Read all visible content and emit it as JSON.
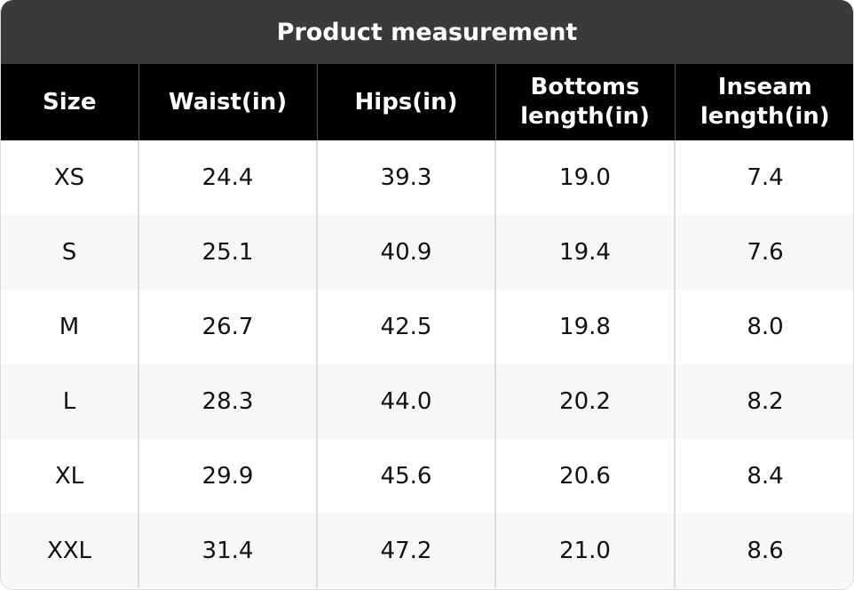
{
  "table": {
    "title": "Product measurement",
    "headers": [
      "Size",
      "Waist(in)",
      "Hips(in)",
      "Bottoms length(in)",
      "Inseam length(in)"
    ],
    "rows": [
      [
        "XS",
        "24.4",
        "39.3",
        "19.0",
        "7.4"
      ],
      [
        "S",
        "25.1",
        "40.9",
        "19.4",
        "7.6"
      ],
      [
        "M",
        "26.7",
        "42.5",
        "19.8",
        "8.0"
      ],
      [
        "L",
        "28.3",
        "44.0",
        "20.2",
        "8.2"
      ],
      [
        "XL",
        "29.9",
        "45.6",
        "20.6",
        "8.4"
      ],
      [
        "XXL",
        "31.4",
        "47.2",
        "21.0",
        "8.6"
      ]
    ]
  }
}
